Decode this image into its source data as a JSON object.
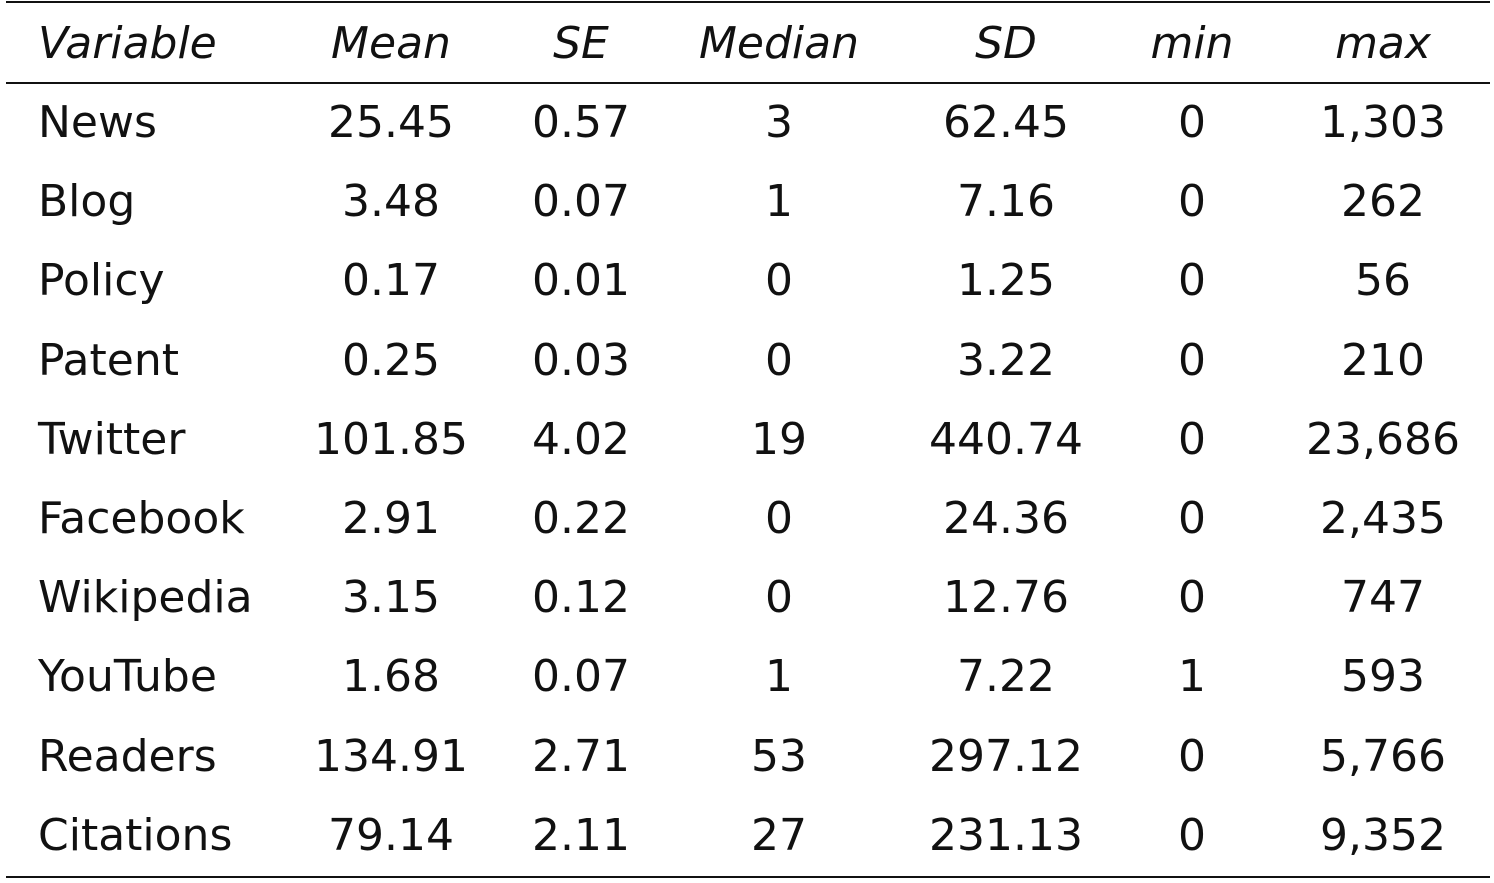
{
  "table": {
    "headers": [
      "Variable",
      "Mean",
      "SE",
      "Median",
      "SD",
      "min",
      "max"
    ],
    "rows": [
      [
        "News",
        "25.45",
        "0.57",
        "3",
        "62.45",
        "0",
        "1,303"
      ],
      [
        "Blog",
        "3.48",
        "0.07",
        "1",
        "7.16",
        "0",
        "262"
      ],
      [
        "Policy",
        "0.17",
        "0.01",
        "0",
        "1.25",
        "0",
        "56"
      ],
      [
        "Patent",
        "0.25",
        "0.03",
        "0",
        "3.22",
        "0",
        "210"
      ],
      [
        "Twitter",
        "101.85",
        "4.02",
        "19",
        "440.74",
        "0",
        "23,686"
      ],
      [
        "Facebook",
        "2.91",
        "0.22",
        "0",
        "24.36",
        "0",
        "2,435"
      ],
      [
        "Wikipedia",
        "3.15",
        "0.12",
        "0",
        "12.76",
        "0",
        "747"
      ],
      [
        "YouTube",
        "1.68",
        "0.07",
        "1",
        "7.22",
        "1",
        "593"
      ],
      [
        "Readers",
        "134.91",
        "2.71",
        "53",
        "297.12",
        "0",
        "5,766"
      ],
      [
        "Citations",
        "79.14",
        "2.11",
        "27",
        "231.13",
        "0",
        "9,352"
      ]
    ]
  }
}
